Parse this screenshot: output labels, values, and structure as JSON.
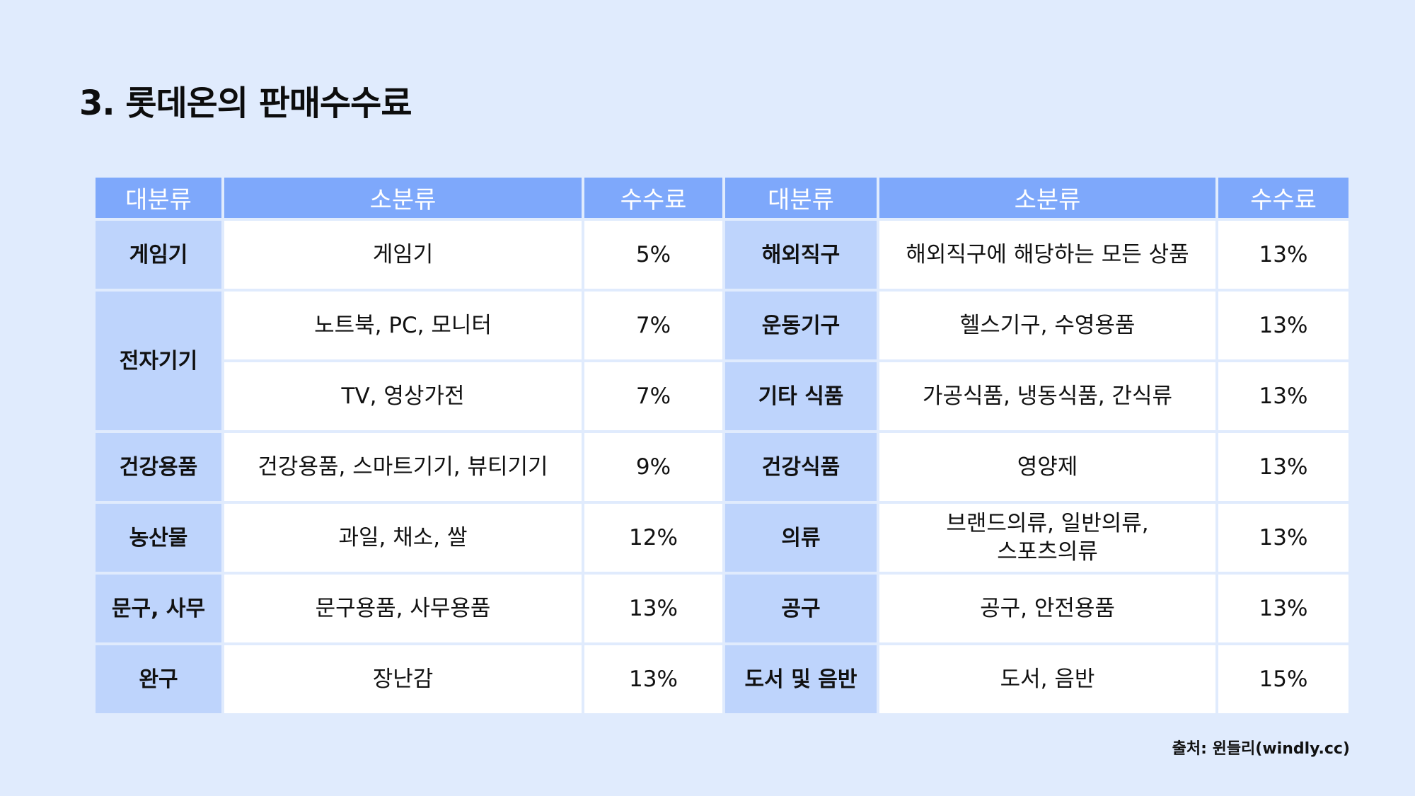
{
  "title": "3. 롯데온의 판매수수료",
  "table": {
    "headers": [
      "대분류",
      "소분류",
      "수수료",
      "대분류",
      "소분류",
      "수수료"
    ],
    "left": [
      {
        "category": "게임기",
        "subs": [
          {
            "sub": "게임기",
            "fee": "5%"
          }
        ]
      },
      {
        "category": "전자기기",
        "subs": [
          {
            "sub": "노트북, PC, 모니터",
            "fee": "7%"
          },
          {
            "sub": "TV, 영상가전",
            "fee": "7%"
          }
        ]
      },
      {
        "category": "건강용품",
        "subs": [
          {
            "sub": "건강용품, 스마트기기, 뷰티기기",
            "fee": "9%"
          }
        ]
      },
      {
        "category": "농산물",
        "subs": [
          {
            "sub": "과일, 채소, 쌀",
            "fee": "12%"
          }
        ]
      },
      {
        "category": "문구, 사무",
        "subs": [
          {
            "sub": "문구용품, 사무용품",
            "fee": "13%"
          }
        ]
      },
      {
        "category": "완구",
        "subs": [
          {
            "sub": "장난감",
            "fee": "13%"
          }
        ]
      }
    ],
    "right": [
      {
        "category": "해외직구",
        "sub": "해외직구에 해당하는 모든 상품",
        "fee": "13%"
      },
      {
        "category": "운동기구",
        "sub": "헬스기구, 수영용품",
        "fee": "13%"
      },
      {
        "category": "기타 식품",
        "sub": "가공식품, 냉동식품, 간식류",
        "fee": "13%"
      },
      {
        "category": "건강식품",
        "sub": "영양제",
        "fee": "13%"
      },
      {
        "category": "의류",
        "sub": "브랜드의류, 일반의류,",
        "sub_line2": "스포츠의류",
        "fee": "13%"
      },
      {
        "category": "공구",
        "sub": "공구, 안전용품",
        "fee": "13%"
      },
      {
        "category": "도서 및 음반",
        "sub": "도서, 음반",
        "fee": "15%"
      }
    ]
  },
  "source": "출처: 윈들리(windly.cc)",
  "colors": {
    "background": "#e0ebfd",
    "header_bg": "#7ea8fb",
    "category_bg": "#bed4fc",
    "cell_bg": "#ffffff"
  }
}
